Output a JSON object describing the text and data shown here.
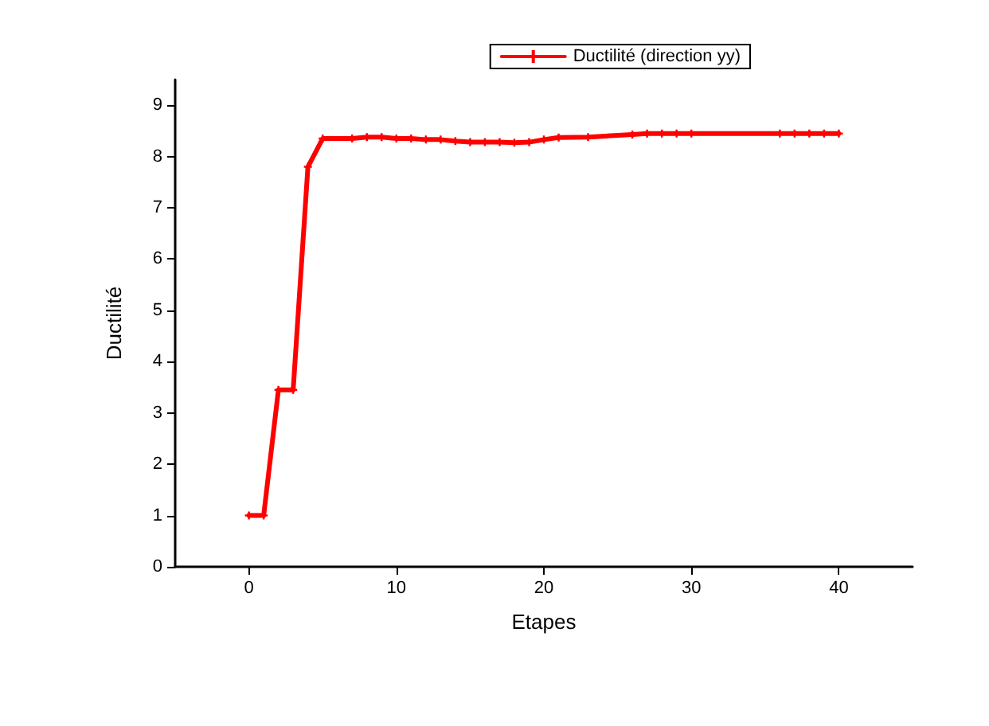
{
  "chart_data": {
    "type": "line",
    "xlabel": "Etapes",
    "ylabel": "Ductilité",
    "x": [
      0,
      1,
      2,
      3,
      4,
      5,
      7,
      8,
      9,
      10,
      11,
      12,
      13,
      14,
      15,
      16,
      17,
      18,
      19,
      20,
      21,
      23,
      26,
      27,
      28,
      29,
      30,
      36,
      37,
      38,
      39,
      40
    ],
    "series": [
      {
        "name": "Ductilité (direction yy)",
        "color": "#ff0000",
        "values": [
          1,
          1,
          3.45,
          3.45,
          7.8,
          8.35,
          8.35,
          8.38,
          8.38,
          8.35,
          8.35,
          8.33,
          8.33,
          8.3,
          8.28,
          8.28,
          8.28,
          8.27,
          8.28,
          8.33,
          8.37,
          8.38,
          8.43,
          8.45,
          8.45,
          8.45,
          8.45,
          8.45,
          8.45,
          8.45,
          8.45,
          8.45
        ]
      }
    ],
    "xlim": [
      -5,
      45
    ],
    "xticks": [
      0,
      10,
      20,
      30,
      40
    ],
    "ylim": [
      0,
      9.5
    ],
    "yticks": [
      0,
      1,
      2,
      3,
      4,
      5,
      6,
      7,
      8,
      9
    ],
    "grid": false,
    "legend": "top right",
    "marker": "cross",
    "line_style": "solid"
  }
}
